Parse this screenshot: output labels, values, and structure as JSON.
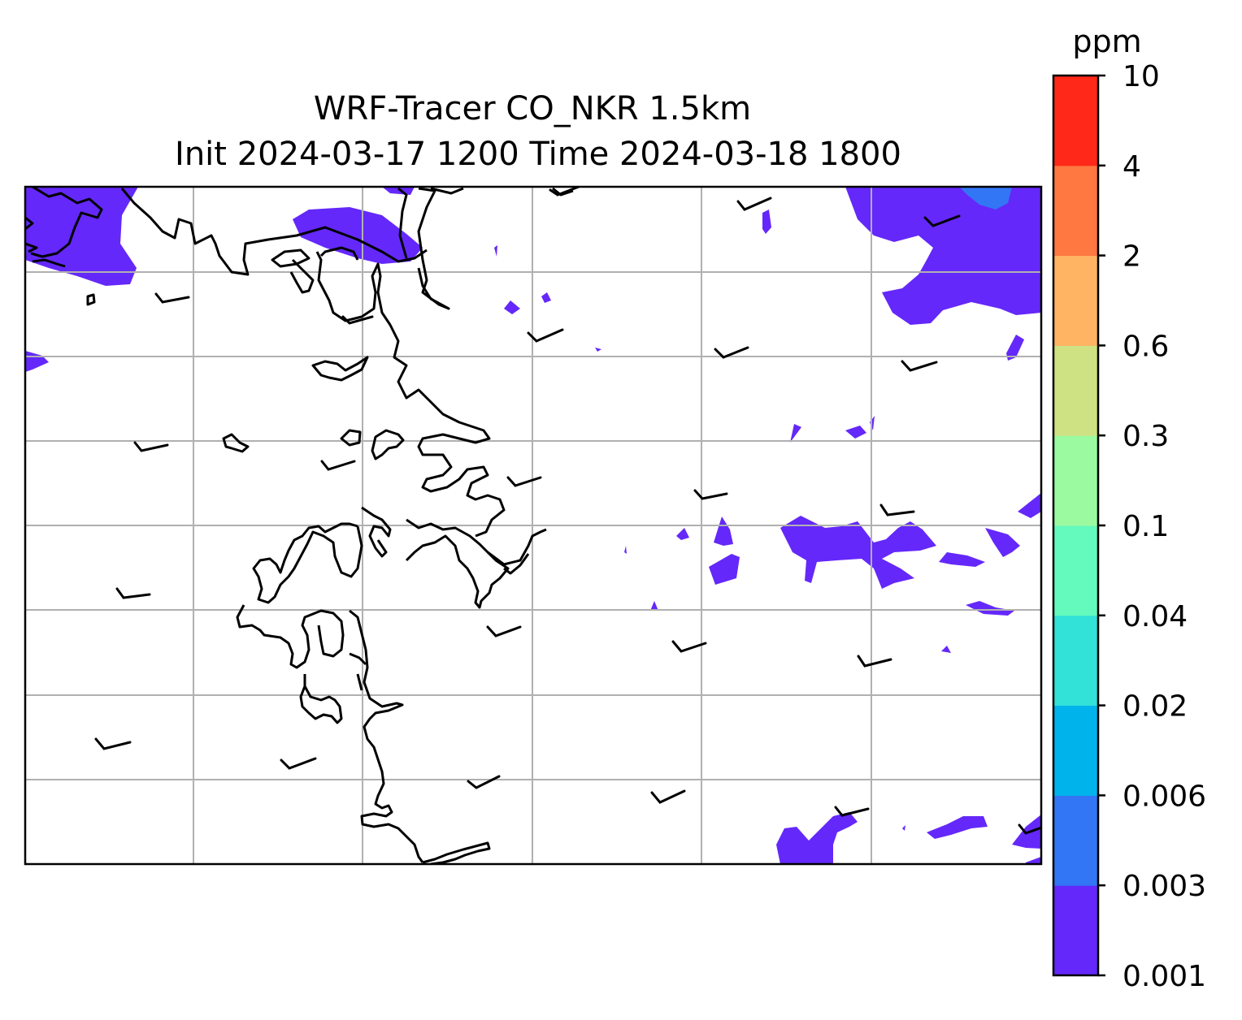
{
  "title": {
    "line1": "WRF-Tracer CO_NKR 1.5km",
    "line2": "Init 2024-03-17 1200 Time 2024-03-18 1800"
  },
  "colorbar": {
    "unit": "ppm",
    "levels": [
      "0.001",
      "0.003",
      "0.006",
      "0.02",
      "0.04",
      "0.1",
      "0.3",
      "0.6",
      "2",
      "4",
      "10"
    ],
    "colors": [
      "#6428fa",
      "#3276f5",
      "#00b4eb",
      "#32e1d8",
      "#64fabe",
      "#9bfaa0",
      "#cfe283",
      "#ffb464",
      "#ff7841",
      "#ff2819"
    ]
  },
  "map": {
    "coastline_color": "#000000",
    "gridline_color": "#b0b0b0",
    "tracer_fill_color": "#6428fa",
    "tracer_peak_color": "#3276f5",
    "barb_color": "#000000"
  }
}
